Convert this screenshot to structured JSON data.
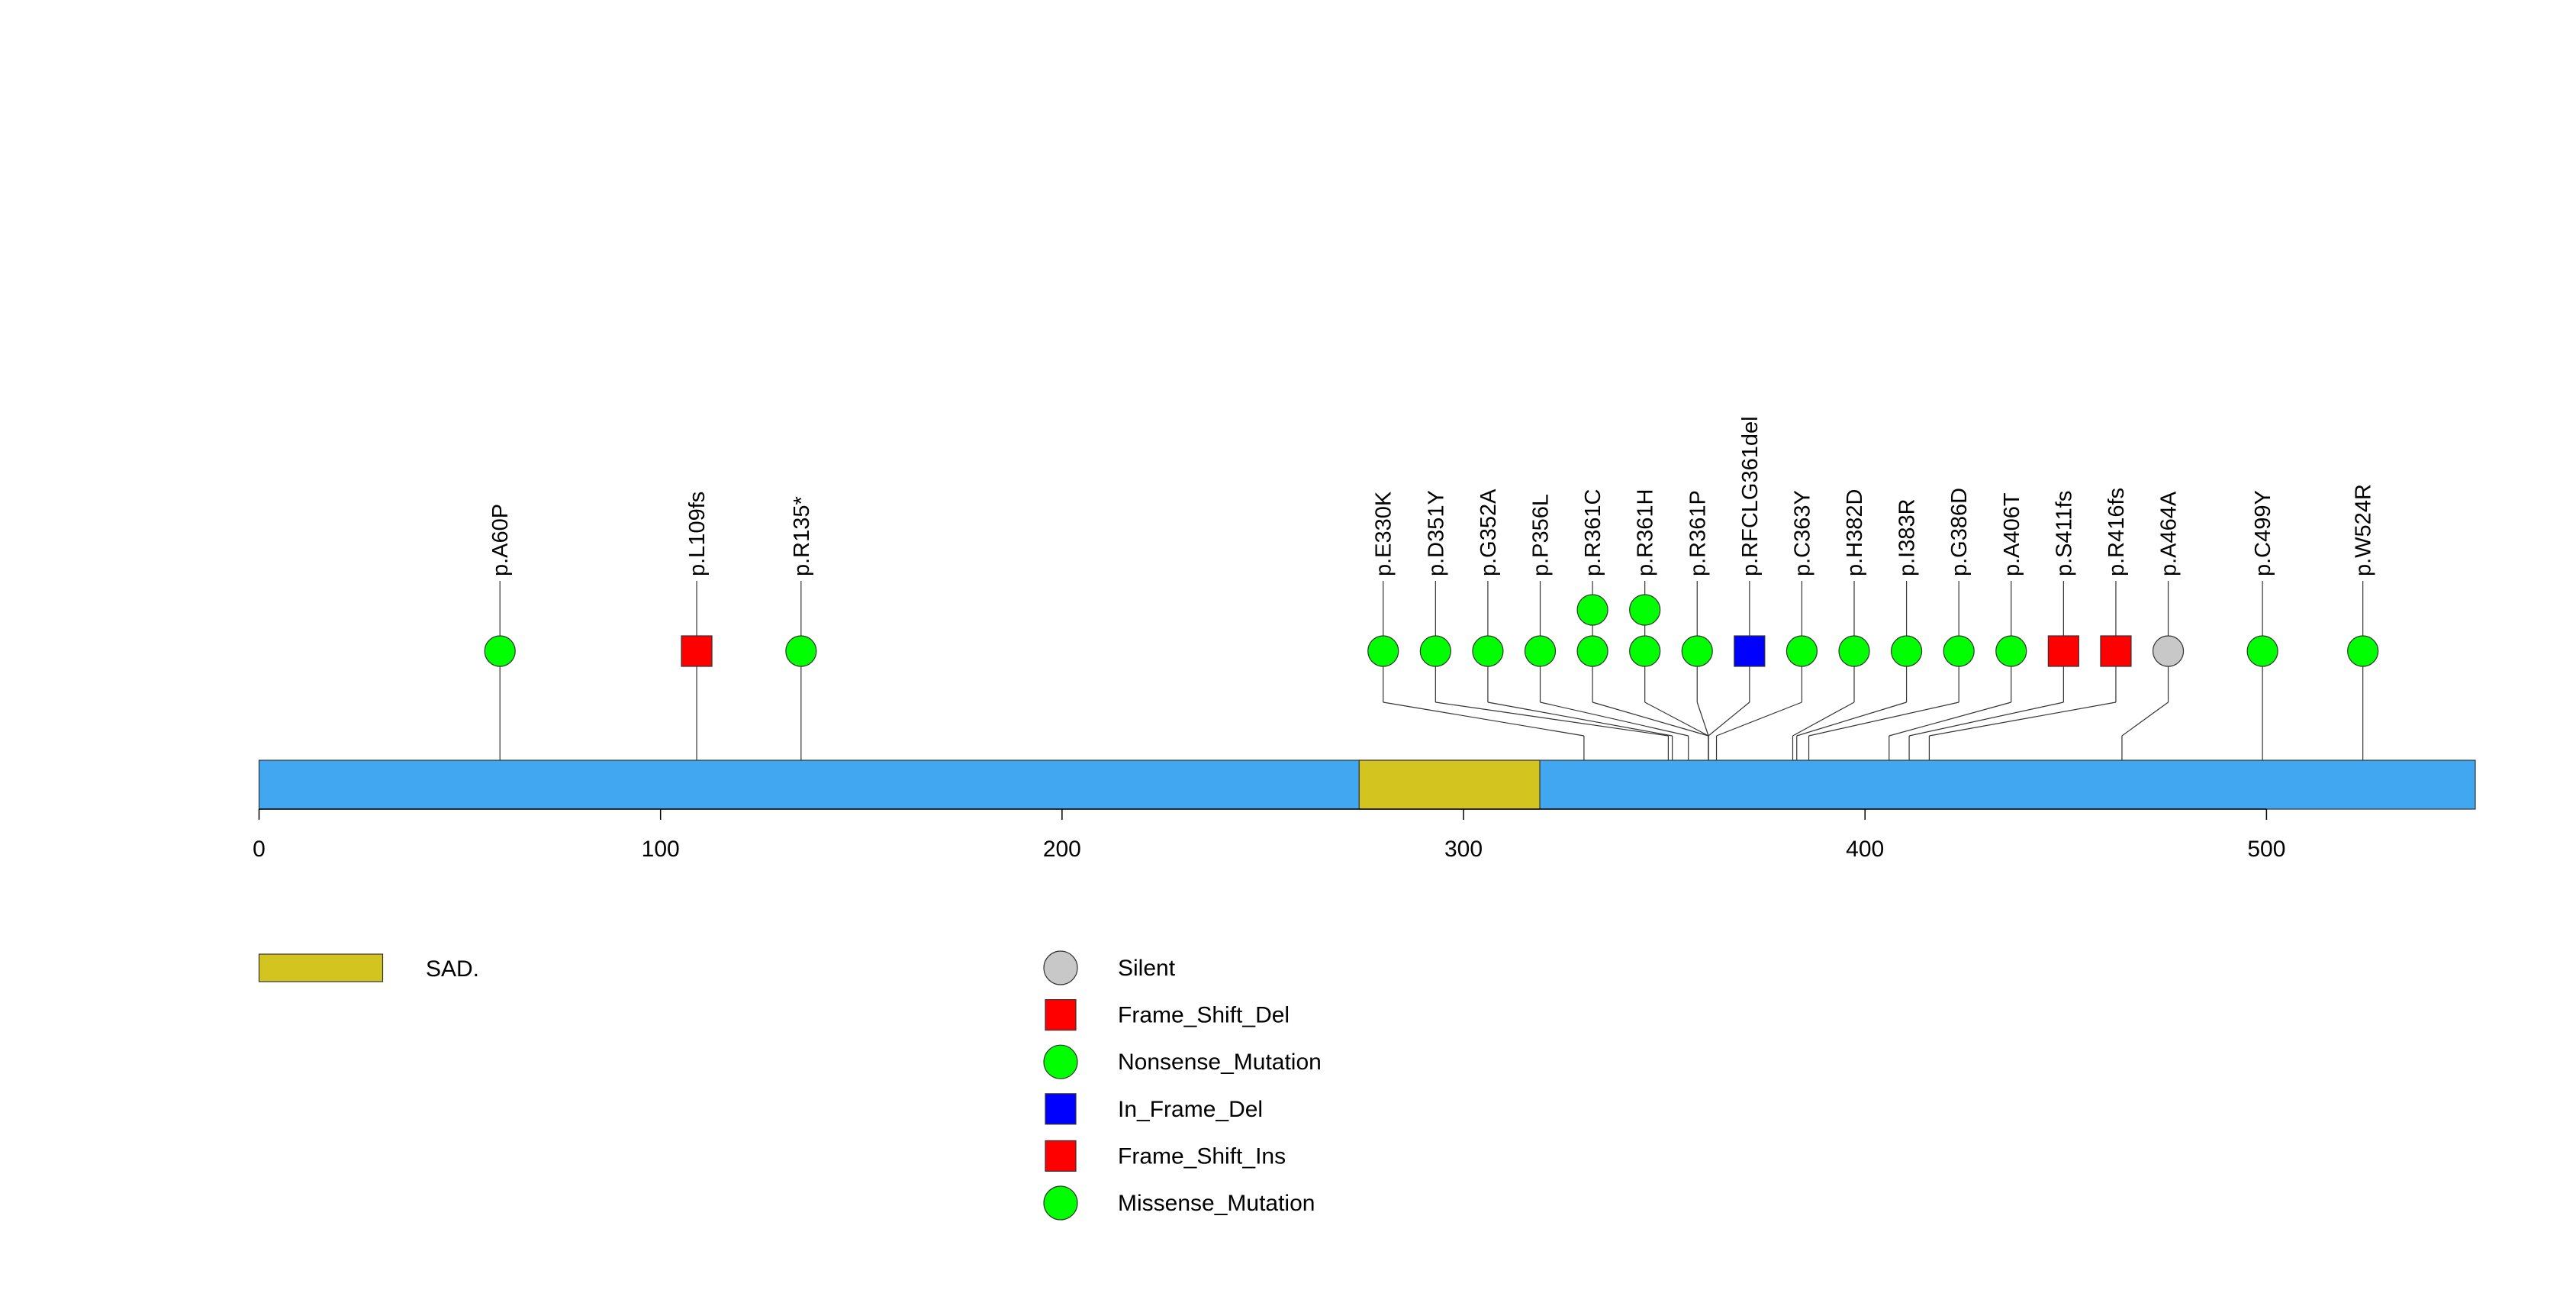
{
  "chart_data": {
    "type": "lollipop",
    "protein_length": 552,
    "xlim": [
      0,
      552
    ],
    "ticks": [
      0,
      100,
      200,
      300,
      400,
      500
    ],
    "tick_labels": [
      "0",
      "100",
      "200",
      "300",
      "400",
      "500"
    ],
    "domains": [
      {
        "name": "SAD.",
        "start": 274,
        "end": 319
      }
    ],
    "mutations": [
      {
        "label": "p.A60P",
        "position": 60,
        "count": 1,
        "type": "Missense_Mutation"
      },
      {
        "label": "p.L109fs",
        "position": 109,
        "count": 1,
        "type": "Frame_Shift_Del"
      },
      {
        "label": "p.R135*",
        "position": 135,
        "count": 1,
        "type": "Nonsense_Mutation"
      },
      {
        "label": "p.E330K",
        "position": 330,
        "count": 1,
        "type": "Missense_Mutation"
      },
      {
        "label": "p.D351Y",
        "position": 351,
        "count": 1,
        "type": "Missense_Mutation"
      },
      {
        "label": "p.G352A",
        "position": 352,
        "count": 1,
        "type": "Missense_Mutation"
      },
      {
        "label": "p.P356L",
        "position": 356,
        "count": 1,
        "type": "Missense_Mutation"
      },
      {
        "label": "p.R361C",
        "position": 361,
        "count": 2,
        "type": "Missense_Mutation"
      },
      {
        "label": "p.R361H",
        "position": 361,
        "count": 2,
        "type": "Missense_Mutation"
      },
      {
        "label": "p.R361P",
        "position": 361,
        "count": 1,
        "type": "Missense_Mutation"
      },
      {
        "label": "p.RFCLG361del",
        "position": 361,
        "count": 1,
        "type": "In_Frame_Del"
      },
      {
        "label": "p.C363Y",
        "position": 363,
        "count": 1,
        "type": "Missense_Mutation"
      },
      {
        "label": "p.H382D",
        "position": 382,
        "count": 1,
        "type": "Missense_Mutation"
      },
      {
        "label": "p.I383R",
        "position": 383,
        "count": 1,
        "type": "Missense_Mutation"
      },
      {
        "label": "p.G386D",
        "position": 386,
        "count": 1,
        "type": "Missense_Mutation"
      },
      {
        "label": "p.A406T",
        "position": 406,
        "count": 1,
        "type": "Missense_Mutation"
      },
      {
        "label": "p.S411fs",
        "position": 411,
        "count": 1,
        "type": "Frame_Shift_Del"
      },
      {
        "label": "p.R416fs",
        "position": 416,
        "count": 1,
        "type": "Frame_Shift_Ins"
      },
      {
        "label": "p.A464A",
        "position": 464,
        "count": 1,
        "type": "Silent"
      },
      {
        "label": "p.C499Y",
        "position": 499,
        "count": 1,
        "type": "Missense_Mutation"
      },
      {
        "label": "p.W524R",
        "position": 524,
        "count": 1,
        "type": "Missense_Mutation"
      }
    ],
    "legend": {
      "domains": [
        {
          "label": "SAD.",
          "color": "#d4c420"
        }
      ],
      "mutation_types": [
        {
          "label": "Silent",
          "shape": "circle",
          "color": "#c8c8c8"
        },
        {
          "label": "Frame_Shift_Del",
          "shape": "square",
          "color": "#ff0000"
        },
        {
          "label": "Nonsense_Mutation",
          "shape": "circle",
          "color": "#00ff00"
        },
        {
          "label": "In_Frame_Del",
          "shape": "square",
          "color": "#0000ff"
        },
        {
          "label": "Frame_Shift_Ins",
          "shape": "square",
          "color": "#ff0000"
        },
        {
          "label": "Missense_Mutation",
          "shape": "circle",
          "color": "#00ff00"
        }
      ]
    },
    "colors": {
      "protein_bar": "#41a7f0",
      "domain": "#d4c420",
      "Silent": "#c8c8c8",
      "Frame_Shift_Del": "#ff0000",
      "Frame_Shift_Ins": "#ff0000",
      "In_Frame_Del": "#0000ff",
      "Nonsense_Mutation": "#00ff00",
      "Missense_Mutation": "#00ff00"
    }
  }
}
